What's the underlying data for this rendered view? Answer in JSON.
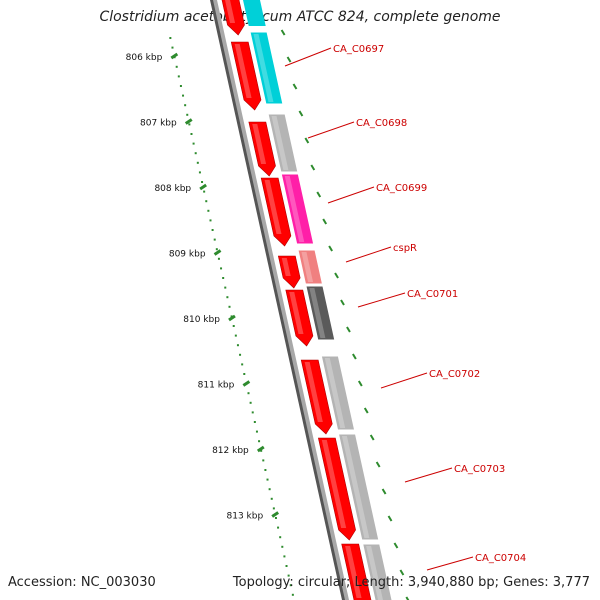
{
  "title": "Clostridium acetobutylicum ATCC 824, complete genome",
  "footer": {
    "accession": "Accession: NC_003030",
    "summary": "Topology: circular; Length: 3,940,880 bp; Genes: 3,777"
  },
  "colors": {
    "backbone": "#888888",
    "cds": "#ff0000",
    "label": "#cc0000",
    "ruler": "#2e8b2e"
  },
  "ruler": [
    {
      "label": "806 kbp"
    },
    {
      "label": "807 kbp"
    },
    {
      "label": "808 kbp"
    },
    {
      "label": "809 kbp"
    },
    {
      "label": "810 kbp"
    },
    {
      "label": "811 kbp"
    },
    {
      "label": "812 kbp"
    },
    {
      "label": "813 kbp"
    }
  ],
  "genes": [
    {
      "label": "CA_C0697",
      "color": "#00d0d8"
    },
    {
      "label": "CA_C0698",
      "color": "#b4b4b4"
    },
    {
      "label": "CA_C0699",
      "color": "#ff1fa8"
    },
    {
      "label": "cspR",
      "color": "#f08080"
    },
    {
      "label": "CA_C0701",
      "color": "#5a5a5a"
    },
    {
      "label": "CA_C0702",
      "color": "#b4b4b4"
    },
    {
      "label": "CA_C0703",
      "color": "#b4b4b4"
    },
    {
      "label": "CA_C0704",
      "color": "#b4b4b4"
    }
  ]
}
